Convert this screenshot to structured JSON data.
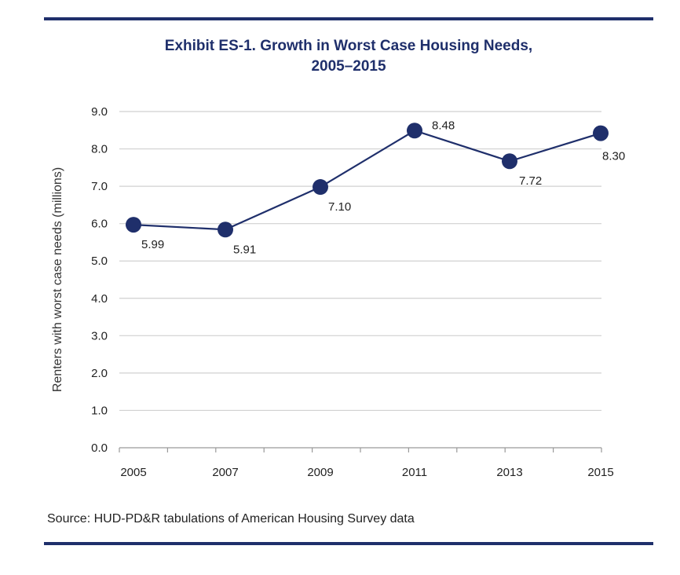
{
  "chart_data": {
    "type": "line",
    "title_line1": "Exhibit ES-1. Growth in Worst Case Housing Needs,",
    "title_line2": "2005–2015",
    "xlabel": "",
    "ylabel": "Renters with worst case needs (millions)",
    "categories": [
      "2005",
      "2007",
      "2009",
      "2011",
      "2013",
      "2015"
    ],
    "series": [
      {
        "values": [
          5.99,
          5.91,
          7.1,
          8.48,
          7.72,
          8.3
        ],
        "labels": [
          "5.99",
          "5.91",
          "7.10",
          "8.48",
          "7.72",
          "8.30"
        ],
        "color": "#1f2f6b"
      }
    ],
    "plotted_values": [
      5.97,
      5.84,
      6.98,
      8.49,
      7.67,
      8.42
    ],
    "ylim": [
      0,
      9
    ],
    "yticks": [
      "0.0",
      "1.0",
      "2.0",
      "3.0",
      "4.0",
      "5.0",
      "6.0",
      "7.0",
      "8.0",
      "9.0"
    ],
    "grid": true,
    "legend": "none",
    "source": "Source: HUD-PD&R tabulations of American Housing Survey data"
  },
  "colors": {
    "accent": "#1f2f6b",
    "grid": "#d0d0d0"
  }
}
